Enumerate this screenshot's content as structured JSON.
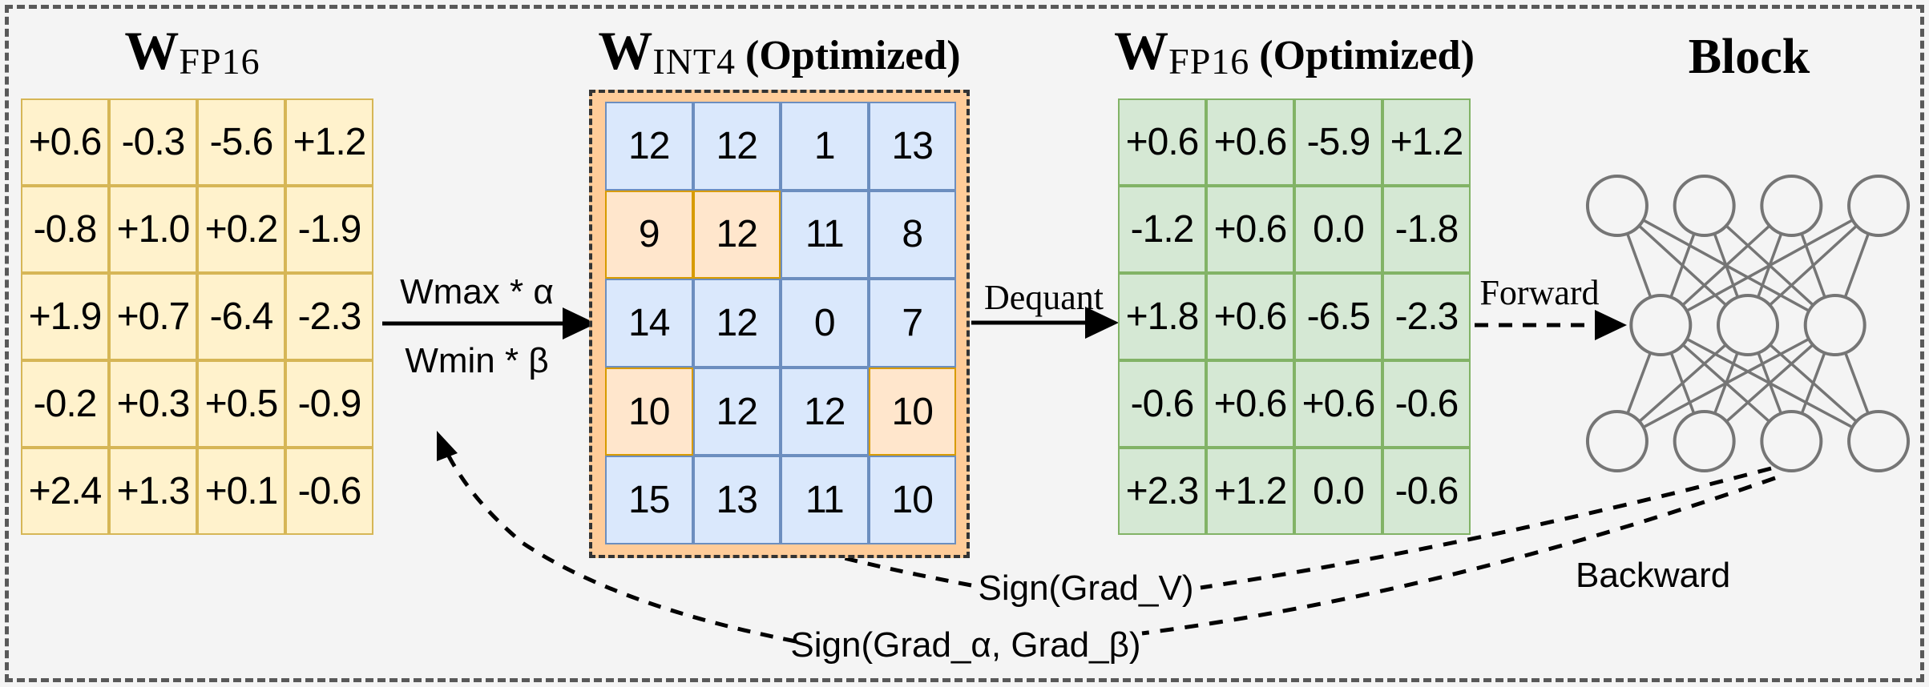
{
  "diagram": {
    "background": "#f4f4f4",
    "border_color": "#595959",
    "matrices": [
      {
        "id": "w-fp16",
        "title": {
          "base": "W",
          "sub": "FP16",
          "suffix": ""
        },
        "fill": "#FFF2CC",
        "stroke": "#D6B656",
        "rows": [
          [
            "+0.6",
            "-0.3",
            "-5.6",
            "+1.2"
          ],
          [
            "-0.8",
            "+1.0",
            "+0.2",
            "-1.9"
          ],
          [
            "+1.9",
            "+0.7",
            "-6.4",
            "-2.3"
          ],
          [
            "-0.2",
            "+0.3",
            "+0.5",
            "-0.9"
          ],
          [
            "+2.4",
            "+1.3",
            "+0.1",
            "-0.6"
          ]
        ]
      },
      {
        "id": "w-int4",
        "title": {
          "base": "W",
          "sub": "INT4",
          "suffix": "(Optimized)"
        },
        "fill": "#DAE8FC",
        "stroke": "#6C8EBF",
        "highlight_fill": "#FFE6CC",
        "highlight_stroke": "#D79B00",
        "frame_fill": "#FFCC99",
        "rows": [
          [
            "12",
            "12",
            "1",
            "13"
          ],
          [
            "9",
            "12",
            "11",
            "8"
          ],
          [
            "14",
            "12",
            "0",
            "7"
          ],
          [
            "10",
            "12",
            "12",
            "10"
          ],
          [
            "15",
            "13",
            "11",
            "10"
          ]
        ],
        "highlights": [
          [
            1,
            0
          ],
          [
            1,
            1
          ],
          [
            3,
            0
          ],
          [
            3,
            3
          ]
        ]
      },
      {
        "id": "w-fp16-optimized",
        "title": {
          "base": "W",
          "sub": "FP16",
          "suffix": "(Optimized)"
        },
        "fill": "#D5E8D4",
        "stroke": "#82B366",
        "rows": [
          [
            "+0.6",
            "+0.6",
            "-5.9",
            "+1.2"
          ],
          [
            "-1.2",
            "+0.6",
            "0.0",
            "-1.8"
          ],
          [
            "+1.8",
            "+0.6",
            "-6.5",
            "-2.3"
          ],
          [
            "-0.6",
            "+0.6",
            "+0.6",
            "-0.6"
          ],
          [
            "+2.3",
            "+1.2",
            "0.0",
            "-0.6"
          ]
        ]
      }
    ],
    "labels": {
      "wmax": "Wmax * α",
      "wmin": "Wmin * β",
      "dequant": "Dequant",
      "forward": "Forward",
      "backward": "Backward",
      "sign_grad_v": "Sign(Grad_V)",
      "sign_grad_ab": "Sign(Grad_α, Grad_β)"
    },
    "block": {
      "title": "Block",
      "layers": [
        4,
        3,
        4
      ],
      "node_color": "#757575"
    }
  }
}
